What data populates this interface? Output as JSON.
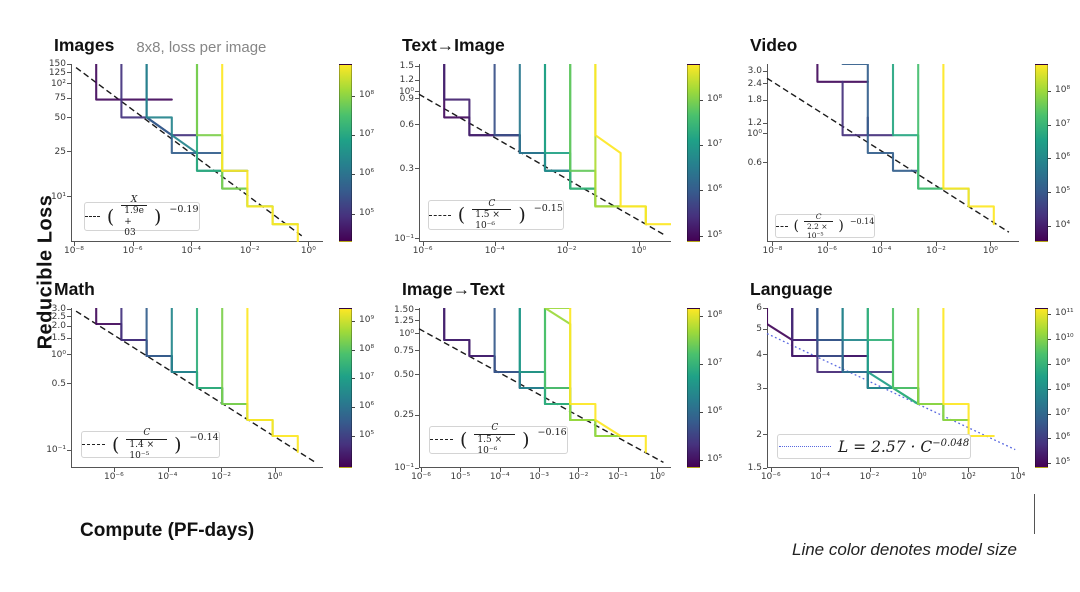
{
  "figure": {
    "ylabel": "Reducible  Loss",
    "xlabel": "Compute (PF-days)",
    "caption": "Line color denotes model size",
    "colors": {
      "viridis_stops": [
        "#440154",
        "#46327e",
        "#365c8d",
        "#277f8e",
        "#1fa187",
        "#4ac16d",
        "#a0da39",
        "#fde725"
      ],
      "guide": "#1a1a1a",
      "language_fit": "#5868e0"
    }
  },
  "chart_data": [
    {
      "type": "line",
      "title": "Images",
      "subtitle": "8x8, loss per image",
      "x_range": [
        -8.1,
        0.5
      ],
      "x_ticks": [
        {
          "e": -8,
          "label": "10⁻⁸"
        },
        {
          "e": -6,
          "label": "10⁻⁶"
        },
        {
          "e": -4,
          "label": "10⁻⁴"
        },
        {
          "e": -2,
          "label": "10⁻²"
        },
        {
          "e": 0,
          "label": "10⁰"
        }
      ],
      "y_range": [
        4,
        150
      ],
      "y_ticks": [
        {
          "v": 150,
          "label": "150"
        },
        {
          "v": 125,
          "label": "125"
        },
        {
          "v": 100,
          "label": "10²"
        },
        {
          "v": 75,
          "label": "75"
        },
        {
          "v": 50,
          "label": "50"
        },
        {
          "v": 25,
          "label": "25"
        },
        {
          "v": 10,
          "label": "10¹"
        }
      ],
      "fit": {
        "num": "X",
        "den": "1.9e + 03",
        "exp": "−0.19"
      },
      "guide": [
        0.02,
        0.02,
        0.92,
        0.97
      ],
      "legend_box": {
        "x": 0.05,
        "y": 0.775,
        "w": 0.46,
        "h": 0.165
      },
      "colorbar": {
        "ticks": [
          {
            "label": "10⁸",
            "f": 0.18
          },
          {
            "label": "10⁷",
            "f": 0.4
          },
          {
            "label": "10⁶",
            "f": 0.62
          },
          {
            "label": "10⁵",
            "f": 0.84
          }
        ]
      },
      "curves": [
        [
          0.03,
          0.07,
          0.2,
          0.42,
          "flat",
          null,
          null
        ],
        [
          0.15,
          0.17,
          0.3,
          0.52,
          "mixed",
          null,
          null
        ],
        [
          0.3,
          0.25,
          0.37,
          0.6,
          "mixed",
          null,
          null
        ],
        [
          0.45,
          0.33,
          0.44,
          0.66,
          "mixed",
          null,
          null
        ],
        [
          0.62,
          0.46,
          0.55,
          0.78,
          "follow",
          null,
          null
        ],
        [
          0.8,
          0.52,
          0.63,
          0.88,
          "follow",
          null,
          null
        ],
        [
          1.0,
          0.575,
          0.7,
          0.95,
          "follow",
          null,
          null
        ]
      ]
    },
    {
      "type": "line",
      "title": "Text→Image",
      "x_range": [
        -6.1,
        0.9
      ],
      "x_ticks": [
        {
          "e": -6,
          "label": "10⁻⁶"
        },
        {
          "e": -4,
          "label": "10⁻⁴"
        },
        {
          "e": -2,
          "label": "10⁻²"
        },
        {
          "e": 0,
          "label": "10⁰"
        }
      ],
      "y_range": [
        0.095,
        1.55
      ],
      "y_ticks": [
        {
          "v": 1.5,
          "label": "1.5"
        },
        {
          "v": 1.2,
          "label": "1.2"
        },
        {
          "v": 1.0,
          "label": "10⁰"
        },
        {
          "v": 0.9,
          "label": "0.9"
        },
        {
          "v": 0.6,
          "label": "0.6"
        },
        {
          "v": 0.3,
          "label": "0.3"
        },
        {
          "v": 0.1,
          "label": "10⁻¹"
        }
      ],
      "fit": {
        "num": "C",
        "den": "1.5 × 10⁻⁶",
        "exp": "−0.15"
      },
      "guide": [
        0.0,
        0.17,
        0.98,
        0.965
      ],
      "legend_box": {
        "x": 0.035,
        "y": 0.765,
        "w": 0.54,
        "h": 0.17
      },
      "colorbar": {
        "ticks": [
          {
            "label": "10⁸",
            "f": 0.2
          },
          {
            "label": "10⁷",
            "f": 0.455
          },
          {
            "label": "10⁶",
            "f": 0.71
          },
          {
            "label": "10⁵",
            "f": 0.965
          }
        ]
      },
      "curves": [
        [
          0.03,
          0.05,
          0.14,
          0.42,
          "mixed",
          null,
          null
        ],
        [
          0.1,
          0.125,
          0.24,
          0.5,
          "mixed",
          null,
          null
        ],
        [
          0.25,
          0.265,
          0.36,
          0.575,
          "mixed",
          null,
          null
        ],
        [
          0.4,
          0.395,
          0.47,
          0.645,
          "follow",
          null,
          null
        ],
        [
          0.5,
          0.465,
          0.53,
          0.7,
          "follow",
          null,
          null
        ],
        [
          0.58,
          0.515,
          0.585,
          0.745,
          "follow",
          null,
          null
        ],
        [
          0.66,
          0.56,
          0.635,
          0.785,
          "follow",
          null,
          null
        ],
        [
          0.76,
          0.61,
          0.685,
          0.835,
          "follow",
          null,
          null
        ],
        [
          0.88,
          0.665,
          0.745,
          0.89,
          "follow",
          null,
          null
        ],
        [
          1.0,
          0.74,
          0.815,
          0.955,
          "follow",
          null,
          null
        ]
      ]
    },
    {
      "type": "line",
      "title": "Video",
      "x_range": [
        -8.2,
        1.05
      ],
      "x_ticks": [
        {
          "e": -8,
          "label": "10⁻⁸"
        },
        {
          "e": -6,
          "label": "10⁻⁶"
        },
        {
          "e": -4,
          "label": "10⁻⁴"
        },
        {
          "e": -2,
          "label": "10⁻²"
        },
        {
          "e": 0,
          "label": "10⁰"
        }
      ],
      "y_range": [
        0.15,
        3.4
      ],
      "y_ticks": [
        {
          "v": 3.0,
          "label": "3.0"
        },
        {
          "v": 2.4,
          "label": "2.4"
        },
        {
          "v": 1.8,
          "label": "1.8"
        },
        {
          "v": 1.2,
          "label": "1.2"
        },
        {
          "v": 1.0,
          "label": "10⁰"
        },
        {
          "v": 0.6,
          "label": "0.6"
        }
      ],
      "fit": {
        "num": "C",
        "den": "2.2 × 10⁻⁵",
        "exp": "−0.14",
        "size": "small"
      },
      "guide": [
        0.0,
        0.08,
        0.96,
        0.945
      ],
      "legend_box": {
        "x": 0.03,
        "y": 0.845,
        "w": 0.4,
        "h": 0.135
      },
      "colorbar": {
        "ticks": [
          {
            "label": "10⁸",
            "f": 0.15
          },
          {
            "label": "10⁷",
            "f": 0.34
          },
          {
            "label": "10⁶",
            "f": 0.53
          },
          {
            "label": "10⁵",
            "f": 0.72
          },
          {
            "label": "10⁴",
            "f": 0.91
          }
        ]
      },
      "curves": [
        [
          0.03,
          0.17,
          0,
          0.42,
          "topflat",
          0.045,
          null
        ],
        [
          0.14,
          0.27,
          0.335,
          0.52,
          "flat",
          0.35,
          0.05
        ],
        [
          0.3,
          0.35,
          0.445,
          0.635,
          "mixed",
          null,
          null
        ],
        [
          0.6,
          0.525,
          0.6,
          0.745,
          "follow",
          null,
          null
        ],
        [
          0.7,
          0.565,
          0.65,
          0.81,
          "follow",
          null,
          null
        ],
        [
          1.0,
          0.665,
          0.77,
          0.945,
          "follow",
          null,
          null
        ]
      ]
    },
    {
      "type": "line",
      "title": "Math",
      "x_range": [
        -7.6,
        1.8
      ],
      "x_ticks": [
        {
          "e": -6,
          "label": "10⁻⁶"
        },
        {
          "e": -4,
          "label": "10⁻⁴"
        },
        {
          "e": -2,
          "label": "10⁻²"
        },
        {
          "e": 0,
          "label": "10⁰"
        }
      ],
      "y_range": [
        0.065,
        3.1
      ],
      "y_ticks": [
        {
          "v": 3.0,
          "label": "3.0"
        },
        {
          "v": 2.5,
          "label": "2.5"
        },
        {
          "v": 2.0,
          "label": "2.0"
        },
        {
          "v": 1.5,
          "label": "1.5"
        },
        {
          "v": 1.0,
          "label": "10⁰"
        },
        {
          "v": 0.5,
          "label": "0.5"
        },
        {
          "v": 0.1,
          "label": "10⁻¹"
        }
      ],
      "fit": {
        "num": "C",
        "den": "1.4 × 10⁻⁵",
        "exp": "−0.14"
      },
      "guide": [
        0.02,
        0.02,
        0.97,
        0.965
      ],
      "legend_box": {
        "x": 0.04,
        "y": 0.77,
        "w": 0.55,
        "h": 0.17
      },
      "colorbar": {
        "ticks": [
          {
            "label": "10⁹",
            "f": 0.08
          },
          {
            "label": "10⁸",
            "f": 0.26
          },
          {
            "label": "10⁷",
            "f": 0.44
          },
          {
            "label": "10⁶",
            "f": 0.62
          },
          {
            "label": "10⁵",
            "f": 0.8
          }
        ]
      },
      "curves": [
        [
          0.03,
          0.085,
          0.16,
          0.385,
          "mixed",
          null,
          null
        ],
        [
          0.15,
          0.195,
          0.27,
          0.47,
          "mixed",
          null,
          null
        ],
        [
          0.3,
          0.295,
          0.37,
          0.565,
          "mixed",
          null,
          null
        ],
        [
          0.46,
          0.375,
          0.44,
          0.635,
          "follow",
          null,
          null
        ],
        [
          0.63,
          0.475,
          0.545,
          0.72,
          "follow",
          null,
          null
        ],
        [
          0.8,
          0.585,
          0.655,
          0.82,
          "follow",
          null,
          null
        ],
        [
          1.0,
          0.685,
          0.765,
          0.935,
          "follow",
          null,
          null
        ]
      ]
    },
    {
      "type": "line",
      "title": "Image→Text",
      "x_range": [
        -6.05,
        0.35
      ],
      "x_ticks": [
        {
          "e": -6,
          "label": "10⁻⁶"
        },
        {
          "e": -5,
          "label": "10⁻⁵"
        },
        {
          "e": -4,
          "label": "10⁻⁴"
        },
        {
          "e": -3,
          "label": "10⁻³"
        },
        {
          "e": -2,
          "label": "10⁻²"
        },
        {
          "e": -1,
          "label": "10⁻¹"
        },
        {
          "e": 0,
          "label": "10⁰"
        }
      ],
      "y_range": [
        0.102,
        1.55
      ],
      "y_ticks": [
        {
          "v": 1.5,
          "label": "1.50"
        },
        {
          "v": 1.25,
          "label": "1.25"
        },
        {
          "v": 1.0,
          "label": "10⁰"
        },
        {
          "v": 0.75,
          "label": "0.75"
        },
        {
          "v": 0.5,
          "label": "0.50"
        },
        {
          "v": 0.25,
          "label": "0.25"
        },
        {
          "v": 0.102,
          "label": "10⁻¹"
        }
      ],
      "fit": {
        "num": "C",
        "den": "1.5 × 10⁻⁶",
        "exp": "−0.16"
      },
      "guide": [
        0.0,
        0.13,
        0.97,
        0.965
      ],
      "legend_box": {
        "x": 0.04,
        "y": 0.74,
        "w": 0.55,
        "h": 0.17
      },
      "colorbar": {
        "ticks": [
          {
            "label": "10⁸",
            "f": 0.05
          },
          {
            "label": "10⁷",
            "f": 0.35
          },
          {
            "label": "10⁶",
            "f": 0.65
          },
          {
            "label": "10⁵",
            "f": 0.95
          }
        ]
      },
      "curves": [
        [
          0.03,
          0.055,
          0.15,
          0.45,
          "mixed",
          null,
          null
        ],
        [
          0.1,
          0.125,
          0.24,
          0.555,
          "mixed",
          null,
          null
        ],
        [
          0.28,
          0.265,
          0.35,
          0.6,
          "mixed",
          null,
          null
        ],
        [
          0.45,
          0.37,
          0.44,
          0.655,
          "follow",
          null,
          null
        ],
        [
          0.55,
          0.425,
          0.5,
          0.7,
          "follow",
          null,
          null
        ],
        [
          0.63,
          0.47,
          0.545,
          0.745,
          "follow",
          null,
          null
        ],
        [
          0.72,
          0.51,
          0.59,
          0.8,
          "follow",
          null,
          null
        ],
        [
          0.85,
          0.55,
          0.635,
          0.855,
          "follow",
          null,
          null
        ],
        [
          1.0,
          0.61,
          0.7,
          0.93,
          "follow",
          null,
          null
        ]
      ]
    },
    {
      "type": "line",
      "title": "Language",
      "x_range": [
        -6.15,
        4.05
      ],
      "x_ticks": [
        {
          "e": -6,
          "label": "10⁻⁶"
        },
        {
          "e": -4,
          "label": "10⁻⁴"
        },
        {
          "e": -2,
          "label": "10⁻²"
        },
        {
          "e": 0,
          "label": "10⁰"
        },
        {
          "e": 2,
          "label": "10²"
        },
        {
          "e": 4,
          "label": "10⁴"
        }
      ],
      "y_range": [
        1.5,
        6.0
      ],
      "y_ticks": [
        {
          "v": 6,
          "label": "6"
        },
        {
          "v": 5,
          "label": "5"
        },
        {
          "v": 4,
          "label": "4"
        },
        {
          "v": 3,
          "label": "3"
        },
        {
          "v": 2,
          "label": "2"
        },
        {
          "v": 1.5,
          "label": "1.5"
        }
      ],
      "fit": {
        "equation": "L = 2.57 · C",
        "exp": "−0.048"
      },
      "guide": [
        0.0,
        0.16,
        0.985,
        0.885
      ],
      "guide_style": "dotted-blue",
      "legend_box": {
        "x": 0.04,
        "y": 0.79,
        "w": 0.77,
        "h": 0.155
      },
      "colorbar": {
        "ticks": [
          {
            "label": "10¹¹",
            "f": 0.04
          },
          {
            "label": "10¹⁰",
            "f": 0.195
          },
          {
            "label": "10⁹",
            "f": 0.35
          },
          {
            "label": "10⁸",
            "f": 0.505
          },
          {
            "label": "10⁷",
            "f": 0.66
          },
          {
            "label": "10⁶",
            "f": 0.815
          },
          {
            "label": "10⁵",
            "f": 0.97
          }
        ]
      },
      "curves": [
        [
          0.02,
          0.025,
          0.095,
          0.335,
          "flat",
          0.215,
          null
        ],
        [
          0.05,
          0.05,
          0.125,
          0.375,
          "flat",
          0.255,
          null
        ],
        [
          0.08,
          0.095,
          0.165,
          0.41,
          "flat",
          0.3,
          null
        ],
        [
          0.12,
          0.13,
          0.205,
          0.45,
          "flat",
          0.35,
          null
        ],
        [
          0.17,
          0.165,
          0.245,
          0.48,
          "mixed",
          null,
          null
        ],
        [
          0.23,
          0.205,
          0.285,
          0.515,
          "mixed",
          null,
          null
        ],
        [
          0.29,
          0.245,
          0.325,
          0.55,
          "mixed",
          null,
          null
        ],
        [
          0.36,
          0.29,
          0.37,
          0.585,
          "follow",
          null,
          null
        ],
        [
          0.46,
          0.34,
          0.42,
          0.625,
          "follow",
          null,
          null
        ],
        [
          0.56,
          0.395,
          0.47,
          0.665,
          "follow",
          null,
          null
        ],
        [
          0.64,
          0.445,
          0.525,
          0.71,
          "follow",
          null,
          null
        ],
        [
          0.73,
          0.5,
          0.58,
          0.755,
          "follow",
          null,
          null
        ],
        [
          0.83,
          0.56,
          0.645,
          0.815,
          "follow",
          null,
          null
        ],
        [
          1.0,
          0.715,
          0.79,
          0.935,
          "follow",
          null,
          null
        ]
      ]
    }
  ]
}
